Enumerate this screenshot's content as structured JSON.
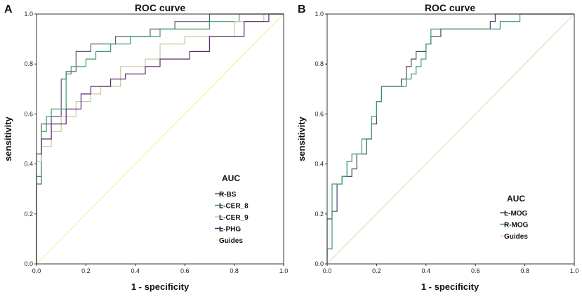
{
  "chart_data": [
    {
      "panel_label": "A",
      "type": "line",
      "title": "ROC curve",
      "xlabel": "1 - specificity",
      "ylabel": "sensitivity",
      "xlim": [
        0,
        1
      ],
      "ylim": [
        0,
        1
      ],
      "xticks": [
        "0.0",
        "0.2",
        "0.4",
        "0.6",
        "0.8",
        "1.0"
      ],
      "yticks": [
        "0.0",
        "0.2",
        "0.4",
        "0.6",
        "0.8",
        "1.0"
      ],
      "legend_title": "AUC",
      "legend_position": "bottom-right",
      "series": [
        {
          "name": "R-BS",
          "color": "#5a5a7a",
          "points": [
            [
              0,
              0
            ],
            [
              0,
              0.32
            ],
            [
              0.02,
              0.32
            ],
            [
              0.02,
              0.56
            ],
            [
              0.06,
              0.56
            ],
            [
              0.06,
              0.59
            ],
            [
              0.1,
              0.59
            ],
            [
              0.1,
              0.74
            ],
            [
              0.12,
              0.74
            ],
            [
              0.12,
              0.77
            ],
            [
              0.16,
              0.77
            ],
            [
              0.16,
              0.85
            ],
            [
              0.22,
              0.85
            ],
            [
              0.22,
              0.88
            ],
            [
              0.32,
              0.88
            ],
            [
              0.32,
              0.91
            ],
            [
              0.46,
              0.91
            ],
            [
              0.46,
              0.94
            ],
            [
              0.56,
              0.94
            ],
            [
              0.56,
              0.97
            ],
            [
              0.7,
              0.97
            ],
            [
              0.7,
              1.0
            ],
            [
              1.0,
              1.0
            ]
          ]
        },
        {
          "name": "L-CER_8",
          "color": "#3a9a6a",
          "points": [
            [
              0,
              0
            ],
            [
              0,
              0.35
            ],
            [
              0.02,
              0.35
            ],
            [
              0.02,
              0.53
            ],
            [
              0.04,
              0.53
            ],
            [
              0.04,
              0.59
            ],
            [
              0.06,
              0.59
            ],
            [
              0.06,
              0.62
            ],
            [
              0.12,
              0.62
            ],
            [
              0.12,
              0.76
            ],
            [
              0.14,
              0.76
            ],
            [
              0.14,
              0.79
            ],
            [
              0.2,
              0.79
            ],
            [
              0.2,
              0.82
            ],
            [
              0.24,
              0.82
            ],
            [
              0.24,
              0.85
            ],
            [
              0.3,
              0.85
            ],
            [
              0.3,
              0.88
            ],
            [
              0.38,
              0.88
            ],
            [
              0.38,
              0.91
            ],
            [
              0.5,
              0.91
            ],
            [
              0.5,
              0.94
            ],
            [
              0.7,
              0.94
            ],
            [
              0.7,
              0.97
            ],
            [
              0.82,
              0.97
            ],
            [
              0.82,
              1.0
            ],
            [
              1.0,
              1.0
            ]
          ]
        },
        {
          "name": "L-CER_9",
          "color": "#c8c8a0",
          "points": [
            [
              0,
              0
            ],
            [
              0,
              0.41
            ],
            [
              0.02,
              0.41
            ],
            [
              0.02,
              0.47
            ],
            [
              0.06,
              0.47
            ],
            [
              0.06,
              0.53
            ],
            [
              0.1,
              0.53
            ],
            [
              0.1,
              0.59
            ],
            [
              0.16,
              0.59
            ],
            [
              0.16,
              0.65
            ],
            [
              0.22,
              0.65
            ],
            [
              0.22,
              0.68
            ],
            [
              0.26,
              0.68
            ],
            [
              0.26,
              0.71
            ],
            [
              0.34,
              0.71
            ],
            [
              0.34,
              0.79
            ],
            [
              0.44,
              0.79
            ],
            [
              0.44,
              0.82
            ],
            [
              0.5,
              0.82
            ],
            [
              0.5,
              0.88
            ],
            [
              0.6,
              0.88
            ],
            [
              0.6,
              0.91
            ],
            [
              0.8,
              0.91
            ],
            [
              0.8,
              0.97
            ],
            [
              0.92,
              0.97
            ],
            [
              0.92,
              1.0
            ],
            [
              1.0,
              1.0
            ]
          ]
        },
        {
          "name": "L-PHG",
          "color": "#5a2a70",
          "points": [
            [
              0,
              0
            ],
            [
              0,
              0.44
            ],
            [
              0.02,
              0.44
            ],
            [
              0.02,
              0.5
            ],
            [
              0.06,
              0.5
            ],
            [
              0.06,
              0.56
            ],
            [
              0.12,
              0.56
            ],
            [
              0.12,
              0.62
            ],
            [
              0.18,
              0.62
            ],
            [
              0.18,
              0.68
            ],
            [
              0.22,
              0.68
            ],
            [
              0.22,
              0.71
            ],
            [
              0.3,
              0.71
            ],
            [
              0.3,
              0.74
            ],
            [
              0.36,
              0.74
            ],
            [
              0.36,
              0.76
            ],
            [
              0.44,
              0.76
            ],
            [
              0.44,
              0.79
            ],
            [
              0.5,
              0.79
            ],
            [
              0.5,
              0.82
            ],
            [
              0.62,
              0.82
            ],
            [
              0.62,
              0.85
            ],
            [
              0.7,
              0.85
            ],
            [
              0.7,
              0.91
            ],
            [
              0.84,
              0.91
            ],
            [
              0.84,
              0.97
            ],
            [
              0.94,
              0.97
            ],
            [
              0.94,
              1.0
            ],
            [
              1.0,
              1.0
            ]
          ]
        },
        {
          "name": "Guides",
          "color": "#f0f0a8",
          "points": [
            [
              0,
              0
            ],
            [
              1,
              1
            ]
          ]
        }
      ]
    },
    {
      "panel_label": "B",
      "type": "line",
      "title": "ROC curve",
      "xlabel": "1 - specificity",
      "ylabel": "sensitivity",
      "xlim": [
        0,
        1
      ],
      "ylim": [
        0,
        1
      ],
      "xticks": [
        "0.0",
        "0.2",
        "0.4",
        "0.6",
        "0.8",
        "1.0"
      ],
      "yticks": [
        "0.0",
        "0.2",
        "0.4",
        "0.6",
        "0.8",
        "1.0"
      ],
      "legend_title": "AUC",
      "legend_position": "bottom-right",
      "series": [
        {
          "name": "L-MOG",
          "color": "#4a4a6a",
          "points": [
            [
              0,
              0
            ],
            [
              0,
              0.18
            ],
            [
              0.02,
              0.18
            ],
            [
              0.02,
              0.21
            ],
            [
              0.04,
              0.21
            ],
            [
              0.04,
              0.32
            ],
            [
              0.06,
              0.32
            ],
            [
              0.06,
              0.35
            ],
            [
              0.1,
              0.35
            ],
            [
              0.1,
              0.38
            ],
            [
              0.12,
              0.38
            ],
            [
              0.12,
              0.44
            ],
            [
              0.16,
              0.44
            ],
            [
              0.16,
              0.5
            ],
            [
              0.18,
              0.5
            ],
            [
              0.18,
              0.56
            ],
            [
              0.2,
              0.56
            ],
            [
              0.2,
              0.65
            ],
            [
              0.22,
              0.65
            ],
            [
              0.22,
              0.71
            ],
            [
              0.3,
              0.71
            ],
            [
              0.3,
              0.74
            ],
            [
              0.32,
              0.74
            ],
            [
              0.32,
              0.79
            ],
            [
              0.34,
              0.79
            ],
            [
              0.34,
              0.82
            ],
            [
              0.36,
              0.82
            ],
            [
              0.36,
              0.85
            ],
            [
              0.4,
              0.85
            ],
            [
              0.4,
              0.88
            ],
            [
              0.42,
              0.88
            ],
            [
              0.42,
              0.91
            ],
            [
              0.46,
              0.91
            ],
            [
              0.46,
              0.94
            ],
            [
              0.66,
              0.94
            ],
            [
              0.66,
              0.97
            ],
            [
              0.68,
              0.97
            ],
            [
              0.68,
              1.0
            ],
            [
              1.0,
              1.0
            ]
          ]
        },
        {
          "name": "R-MOG",
          "color": "#3a9a6a",
          "points": [
            [
              0,
              0
            ],
            [
              0,
              0.06
            ],
            [
              0.02,
              0.06
            ],
            [
              0.02,
              0.32
            ],
            [
              0.06,
              0.32
            ],
            [
              0.06,
              0.35
            ],
            [
              0.08,
              0.35
            ],
            [
              0.08,
              0.41
            ],
            [
              0.1,
              0.41
            ],
            [
              0.1,
              0.44
            ],
            [
              0.14,
              0.44
            ],
            [
              0.14,
              0.5
            ],
            [
              0.18,
              0.5
            ],
            [
              0.18,
              0.59
            ],
            [
              0.2,
              0.59
            ],
            [
              0.2,
              0.65
            ],
            [
              0.22,
              0.65
            ],
            [
              0.22,
              0.71
            ],
            [
              0.32,
              0.71
            ],
            [
              0.32,
              0.74
            ],
            [
              0.34,
              0.74
            ],
            [
              0.34,
              0.76
            ],
            [
              0.36,
              0.76
            ],
            [
              0.36,
              0.79
            ],
            [
              0.38,
              0.79
            ],
            [
              0.38,
              0.82
            ],
            [
              0.4,
              0.82
            ],
            [
              0.4,
              0.88
            ],
            [
              0.42,
              0.88
            ],
            [
              0.42,
              0.94
            ],
            [
              0.7,
              0.94
            ],
            [
              0.7,
              0.97
            ],
            [
              0.78,
              0.97
            ],
            [
              0.78,
              1.0
            ],
            [
              1.0,
              1.0
            ]
          ]
        },
        {
          "name": "Guides",
          "color": "#e8dcc0",
          "points": [
            [
              0,
              0
            ],
            [
              1,
              1
            ]
          ]
        }
      ]
    }
  ]
}
